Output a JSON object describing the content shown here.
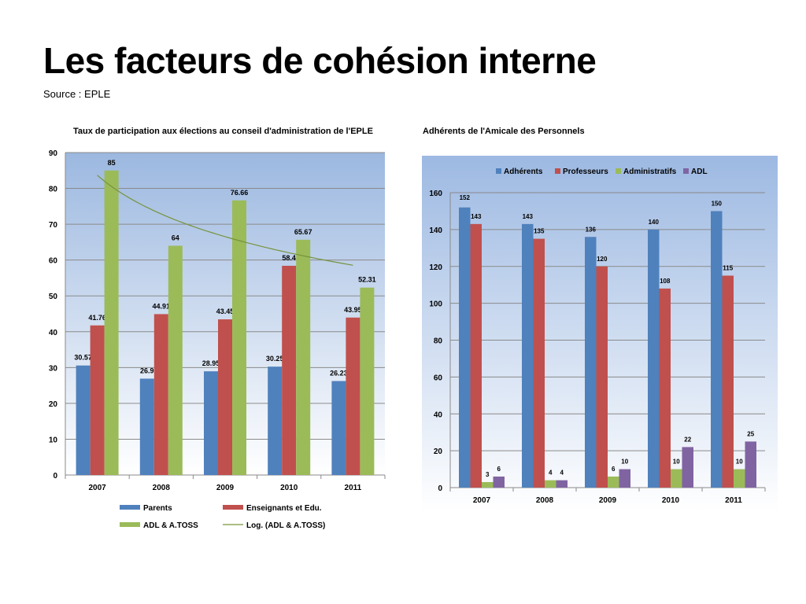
{
  "slide": {
    "title": "Les facteurs de cohésion interne",
    "source": "Source : EPLE"
  },
  "chart_data": [
    {
      "type": "bar",
      "title": "Taux de participation aux élections au conseil d'administration de l'EPLE",
      "categories": [
        "2007",
        "2008",
        "2009",
        "2010",
        "2011"
      ],
      "series": [
        {
          "name": "Parents",
          "color": "#4F81BD",
          "values": [
            30.57,
            26.9,
            28.95,
            30.25,
            26.23
          ]
        },
        {
          "name": "Enseignants et Edu.",
          "color": "#C0504D",
          "values": [
            41.76,
            44.91,
            43.45,
            58.4,
            43.95
          ]
        },
        {
          "name": "ADL & A.TOSS",
          "color": "#9BBB59",
          "values": [
            85,
            64,
            76.66,
            65.67,
            52.31
          ]
        }
      ],
      "trendline": {
        "name": "Log. (ADL & A.TOSS)",
        "type": "logarithmic",
        "of": "ADL & A.TOSS",
        "color": "#77933C"
      },
      "ylim": [
        0,
        90
      ],
      "yticks": [
        0,
        10,
        20,
        30,
        40,
        50,
        60,
        70,
        80,
        90
      ],
      "grid": true,
      "legend_position": "bottom",
      "data_labels": true
    },
    {
      "type": "bar",
      "title": "Adhérents de l'Amicale des Personnels",
      "categories": [
        "2007",
        "2008",
        "2009",
        "2010",
        "2011"
      ],
      "series": [
        {
          "name": "Adhérents",
          "color": "#4F81BD",
          "values": [
            152,
            143,
            136,
            140,
            150
          ]
        },
        {
          "name": "Professeurs",
          "color": "#C0504D",
          "values": [
            143,
            135,
            120,
            108,
            115
          ]
        },
        {
          "name": "Administratifs",
          "color": "#9BBB59",
          "values": [
            3,
            4,
            6,
            10,
            10
          ]
        },
        {
          "name": "ADL",
          "color": "#8064A2",
          "values": [
            6,
            4,
            10,
            22,
            25
          ]
        }
      ],
      "ylim": [
        0,
        160
      ],
      "yticks": [
        0,
        20,
        40,
        60,
        80,
        100,
        120,
        140,
        160
      ],
      "grid": true,
      "legend_position": "top",
      "data_labels": true
    }
  ]
}
